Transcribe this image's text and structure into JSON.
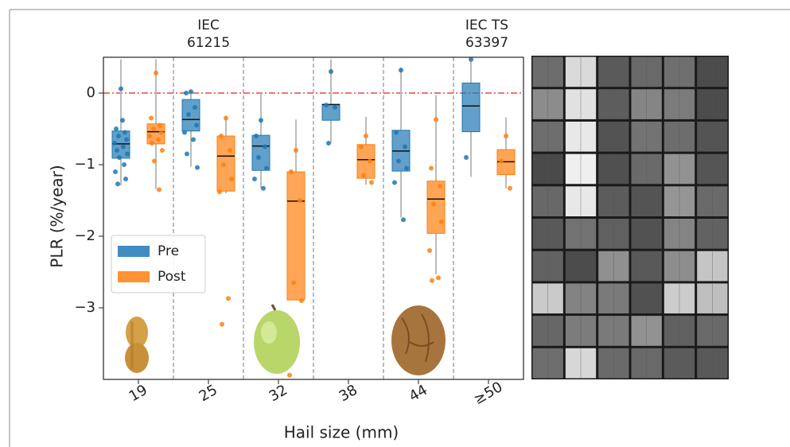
{
  "chart_data": {
    "type": "box",
    "annotations": [
      {
        "lines": [
          "IEC",
          "61215"
        ]
      },
      {
        "lines": [
          "IEC TS",
          "63397"
        ]
      }
    ],
    "x_label": "Hail size (mm)",
    "y_label": "PLR (%/year)",
    "categories": [
      "19",
      "25",
      "32",
      "38",
      "44",
      "≥50"
    ],
    "ylim": [
      -4,
      0.5
    ],
    "yticks": [
      0,
      {
        "value": -1,
        "label": "−1"
      },
      {
        "value": -2,
        "label": "−2"
      },
      {
        "value": -3,
        "label": "−3"
      }
    ],
    "reference_line": 0,
    "reference_color": "#e8483c",
    "legend": "center left",
    "series": [
      {
        "name": "Pre",
        "color": "#1f77b4",
        "low": [
          -1.29,
          -1.03,
          -1.33,
          -0.7,
          -1.74,
          -1.17
        ],
        "q1": [
          -0.91,
          -0.53,
          -1.08,
          -0.38,
          -1.09,
          -0.54
        ],
        "median": [
          -0.71,
          -0.37,
          -0.74,
          -0.16,
          -0.81,
          -0.18
        ],
        "q3": [
          -0.53,
          -0.09,
          -0.59,
          -0.16,
          -0.52,
          0.14
        ],
        "high": [
          0.47,
          0.04,
          0,
          0.47,
          0.36,
          0.47
        ],
        "points": [
          [
            0.06,
            -0.5,
            -0.55,
            -0.6,
            -0.65,
            -0.7,
            -0.75,
            -0.8,
            -0.85,
            -0.9,
            -1.0,
            -1.1,
            -1.2,
            -1.27,
            -0.38
          ],
          [
            0.02,
            0.0,
            -0.2,
            -0.3,
            -0.45,
            -0.55,
            -0.65,
            -0.85,
            -1.04
          ],
          [
            -0.38,
            -0.6,
            -0.75,
            -0.9,
            -1.05,
            -1.2,
            -1.33
          ],
          [
            0.3,
            -0.17,
            -0.2,
            -0.7
          ],
          [
            0.32,
            -0.55,
            -0.75,
            -0.95,
            -1.05,
            -1.25,
            -1.77
          ],
          [
            0.47,
            -0.9
          ]
        ]
      },
      {
        "name": "Post",
        "color": "#ff7f0e",
        "low": [
          -1.34,
          -1.4,
          -2.89,
          -1.28,
          -2.53,
          -1.33
        ],
        "q1": [
          -0.71,
          -1.37,
          -2.89,
          -1.19,
          -1.96,
          -1.14
        ],
        "median": [
          -0.54,
          -0.88,
          -1.51,
          -0.93,
          -1.48,
          -0.96
        ],
        "q3": [
          -0.43,
          -0.6,
          -1.1,
          -0.72,
          -1.23,
          -0.79
        ],
        "high": [
          0.47,
          -0.32,
          -0.37,
          -0.33,
          -0.03,
          -0.34
        ],
        "points": [
          [
            0.28,
            -0.35,
            -0.45,
            -0.5,
            -0.55,
            -0.6,
            -0.65,
            -0.7,
            -0.8,
            -0.95,
            -1.35
          ],
          [
            -0.35,
            -0.6,
            -0.8,
            -1.0,
            -1.2,
            -1.38,
            -2.87,
            -3.23
          ],
          [
            -0.8,
            -1.1,
            -1.5,
            -2.65,
            -2.9,
            -3.94
          ],
          [
            -0.6,
            -0.75,
            -0.95,
            -1.15,
            -1.25
          ],
          [
            -0.37,
            -1.05,
            -1.3,
            -1.55,
            -1.8,
            -2.2,
            -2.58,
            -2.62
          ],
          [
            -0.6,
            -0.95,
            -1.33
          ]
        ]
      }
    ]
  }
}
